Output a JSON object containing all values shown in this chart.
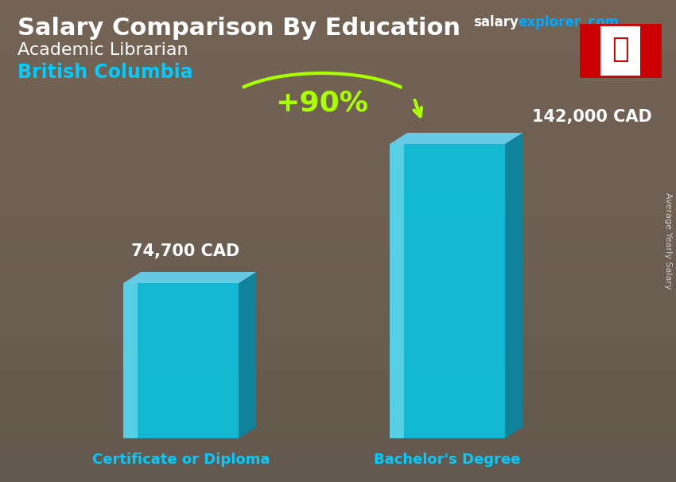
{
  "title_main": "Salary Comparison By Education",
  "subtitle1": "Academic Librarian",
  "subtitle2": "British Columbia",
  "watermark_salary": "salary",
  "watermark_explorer": "explorer",
  "watermark_com": ".com",
  "ylabel_rotated": "Average Yearly Salary",
  "categories": [
    "Certificate or Diploma",
    "Bachelor's Degree"
  ],
  "values": [
    74700,
    142000
  ],
  "value_labels": [
    "74,700 CAD",
    "142,000 CAD"
  ],
  "pct_label": "+90%",
  "bar_face_color": "#00CCEE",
  "bar_side_color": "#008AAA",
  "bar_top_color": "#66DDFF",
  "bar_highlight_color": "#AAEEFF",
  "bg_overlay_color": "#888888",
  "title_color": "#FFFFFF",
  "subtitle1_color": "#FFFFFF",
  "subtitle2_color": "#00CCFF",
  "category_color": "#00CCFF",
  "value_label_color": "#FFFFFF",
  "pct_color": "#AAFF00",
  "arrow_color": "#AAFF00",
  "watermark_salary_color": "#FFFFFF",
  "watermark_explorer_color": "#00AAFF",
  "watermark_com_color": "#00AAFF",
  "side_text_color": "#CCCCCC",
  "flag_border_color": "#CC0000"
}
